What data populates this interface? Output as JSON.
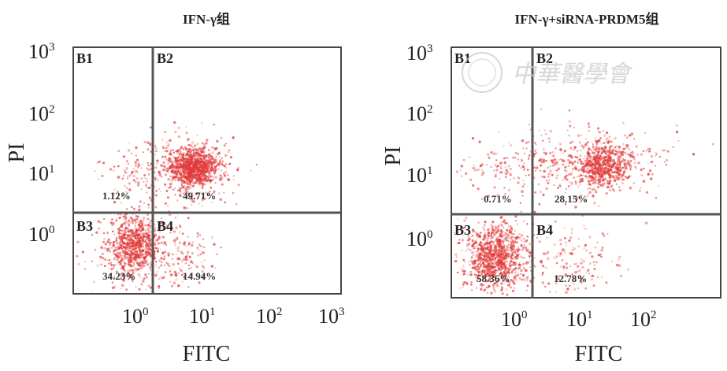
{
  "chart_data": [
    {
      "type": "scatter",
      "title": "IFN-γ组",
      "xlabel": "FITC",
      "ylabel": "PI",
      "x_ticks": [
        "10",
        "10",
        "10",
        "10"
      ],
      "x_tick_exps": [
        "0",
        "1",
        "2",
        "3"
      ],
      "y_ticks": [
        "10",
        "10",
        "10",
        "10"
      ],
      "y_tick_exps": [
        "3",
        "2",
        "1",
        "0"
      ],
      "quadrants": [
        {
          "name": "B1",
          "percent": "1.12%"
        },
        {
          "name": "B2",
          "percent": "49.71%"
        },
        {
          "name": "B3",
          "percent": "34.23%"
        },
        {
          "name": "B4",
          "percent": "14.94%"
        }
      ],
      "point_color": "#e23b3b"
    },
    {
      "type": "scatter",
      "title": "IFN-γ+siRNA-PRDM5组",
      "xlabel": "FITC",
      "ylabel": "PI",
      "x_ticks": [
        "10",
        "10",
        "10"
      ],
      "x_tick_exps": [
        "0",
        "1",
        "2"
      ],
      "y_ticks": [
        "10",
        "10",
        "10",
        "10"
      ],
      "y_tick_exps": [
        "3",
        "2",
        "1",
        "0"
      ],
      "quadrants": [
        {
          "name": "B1",
          "percent": "0.71%"
        },
        {
          "name": "B2",
          "percent": "28.15%"
        },
        {
          "name": "B3",
          "percent": "58.36%"
        },
        {
          "name": "B4",
          "percent": "12.78%"
        }
      ],
      "point_color": "#e23b3b"
    }
  ],
  "watermark": "中華醫學會"
}
